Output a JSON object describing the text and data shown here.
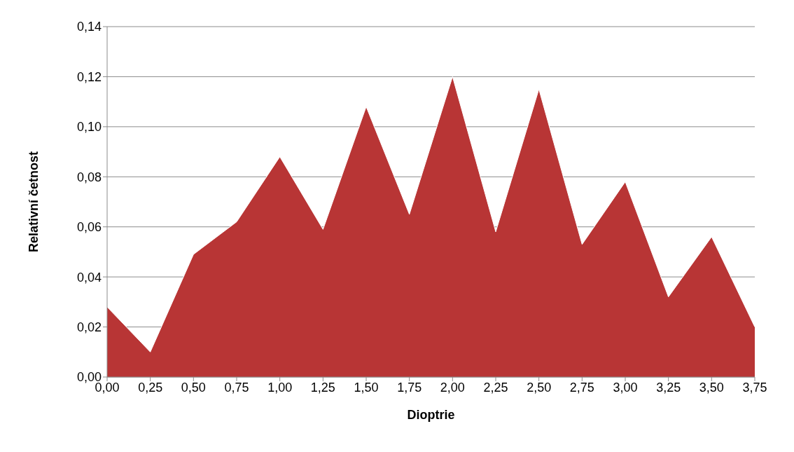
{
  "chart_data": {
    "type": "area",
    "xlabel": "Dioptrie",
    "ylabel": "Relativní četnost",
    "x": [
      0,
      0.25,
      0.5,
      0.75,
      1,
      1.25,
      1.5,
      1.75,
      2,
      2.25,
      2.5,
      2.75,
      3,
      3.25,
      3.5,
      3.75
    ],
    "values": [
      0.028,
      0.01,
      0.049,
      0.062,
      0.088,
      0.059,
      0.108,
      0.065,
      0.12,
      0.058,
      0.115,
      0.053,
      0.078,
      0.032,
      0.056,
      0.02
    ],
    "color": "#b83535",
    "xlim": [
      0,
      3.75
    ],
    "xticks": [
      {
        "value": 0,
        "label": "0,00"
      },
      {
        "value": 0.25,
        "label": "0,25"
      },
      {
        "value": 0.5,
        "label": "0,50"
      },
      {
        "value": 0.75,
        "label": "0,75"
      },
      {
        "value": 1,
        "label": "1,00"
      },
      {
        "value": 1.25,
        "label": "1,25"
      },
      {
        "value": 1.5,
        "label": "1,50"
      },
      {
        "value": 1.75,
        "label": "1,75"
      },
      {
        "value": 2,
        "label": "2,00"
      },
      {
        "value": 2.25,
        "label": "2,25"
      },
      {
        "value": 2.5,
        "label": "2,50"
      },
      {
        "value": 2.75,
        "label": "2,75"
      },
      {
        "value": 3,
        "label": "3,00"
      },
      {
        "value": 3.25,
        "label": "3,25"
      },
      {
        "value": 3.5,
        "label": "3,50"
      },
      {
        "value": 3.75,
        "label": "3,75"
      }
    ],
    "ylim": [
      0,
      0.14
    ],
    "yticks": [
      {
        "value": 0,
        "label": "0,00"
      },
      {
        "value": 0.02,
        "label": "0,02"
      },
      {
        "value": 0.04,
        "label": "0,04"
      },
      {
        "value": 0.06,
        "label": "0,06"
      },
      {
        "value": 0.08,
        "label": "0,08"
      },
      {
        "value": 0.1,
        "label": "0,10"
      },
      {
        "value": 0.12,
        "label": "0,12"
      },
      {
        "value": 0.14,
        "label": "0,14"
      }
    ],
    "grid": "y",
    "legend": false
  }
}
